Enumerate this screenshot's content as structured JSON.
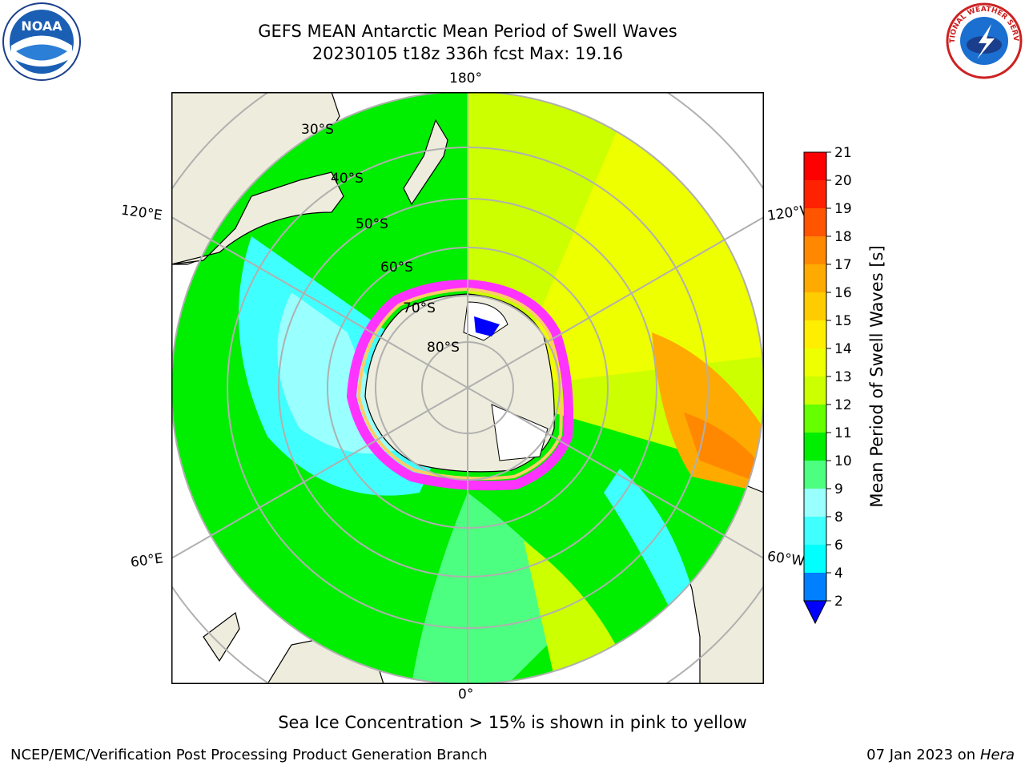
{
  "title": {
    "line1": "GEFS MEAN Antarctic Mean Period of Swell Waves",
    "line2": "20230105 t18z 336h fcst   Max: 19.16"
  },
  "map": {
    "projection": "south-polar-stereographic",
    "longitude_labels": {
      "top": "180°",
      "bottom": "0°",
      "upper_left": "120°E",
      "upper_right": "120°W",
      "lower_left": "60°E",
      "lower_right": "60°W"
    },
    "latitude_labels": [
      "30°S",
      "40°S",
      "50°S",
      "60°S",
      "70°S",
      "80°S"
    ],
    "land_color": "#eeecdc",
    "ice_colors": [
      "#ff33ff",
      "#ff99cc",
      "#ffcc66",
      "#ffffff"
    ]
  },
  "colorbar": {
    "label": "Mean Period of Swell Waves [s]",
    "ticks": [
      "2",
      "4",
      "6",
      "8",
      "9",
      "10",
      "11",
      "12",
      "13",
      "14",
      "15",
      "16",
      "17",
      "18",
      "19",
      "20",
      "21"
    ],
    "colors": [
      "#0000ff",
      "#0080ff",
      "#00ffff",
      "#40ffff",
      "#99ffff",
      "#4dff80",
      "#00ee00",
      "#66ff00",
      "#ccff00",
      "#eeff00",
      "#ffee00",
      "#ffcc00",
      "#ffaa00",
      "#ff8800",
      "#ff5500",
      "#ff2200",
      "#ff0000"
    ]
  },
  "note": "Sea Ice Concentration > 15% is shown in pink to yellow",
  "footer": {
    "left": "NCEP/EMC/Verification Post Processing Product Generation Branch",
    "right_text": "07 Jan 2023 on ",
    "right_host": "Hera"
  },
  "logos": {
    "left_text": "NOAA",
    "right_text": "NATIONAL WEATHER SERVICE"
  }
}
